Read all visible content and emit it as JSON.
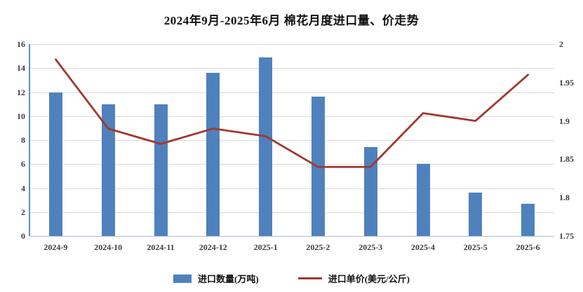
{
  "chart_data": {
    "type": "combo",
    "title": "2024年9月-2025年6月 棉花月度进口量、价走势",
    "categories": [
      "2024-9",
      "2024-10",
      "2024-11",
      "2024-12",
      "2025-1",
      "2025-2",
      "2025-3",
      "2025-4",
      "2025-5",
      "2025-6"
    ],
    "series": [
      {
        "name": "进口数量(万吨)",
        "type": "bar",
        "axis": "left",
        "color": "#4f81bd",
        "values": [
          12,
          11,
          11,
          13.6,
          14.9,
          11.6,
          7.4,
          6,
          3.6,
          2.7
        ]
      },
      {
        "name": "进口单价(美元/公斤)",
        "type": "line",
        "axis": "right",
        "color": "#a13830",
        "values": [
          1.98,
          1.89,
          1.87,
          1.89,
          1.88,
          1.84,
          1.84,
          1.91,
          1.9,
          1.96
        ]
      }
    ],
    "left_axis": {
      "min": 0,
      "max": 16,
      "step": 2,
      "ticks": [
        0,
        2,
        4,
        6,
        8,
        10,
        12,
        14,
        16
      ]
    },
    "right_axis": {
      "min": 1.75,
      "max": 2,
      "step": 0.05,
      "ticks": [
        1.75,
        1.8,
        1.85,
        1.9,
        1.95,
        2
      ]
    },
    "grid": true,
    "legend_position": "bottom"
  }
}
